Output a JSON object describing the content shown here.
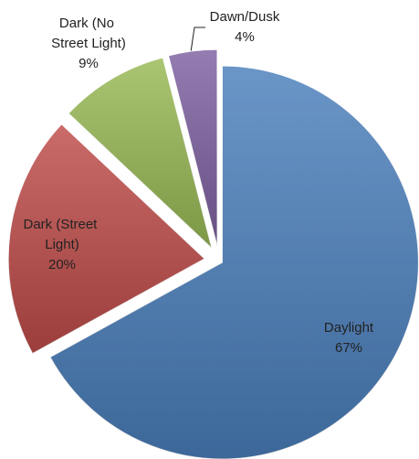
{
  "chart_data": {
    "type": "pie",
    "categories": [
      "Daylight",
      "Dark (Street Light)",
      "Dark (No Street Light)",
      "Dawn/Dusk"
    ],
    "values": [
      67,
      20,
      9,
      4
    ],
    "value_labels": [
      "67%",
      "20%",
      "9%",
      "4%"
    ],
    "colors": [
      "#4a7ebb",
      "#be4b48",
      "#98b954",
      "#7d60a0"
    ]
  }
}
